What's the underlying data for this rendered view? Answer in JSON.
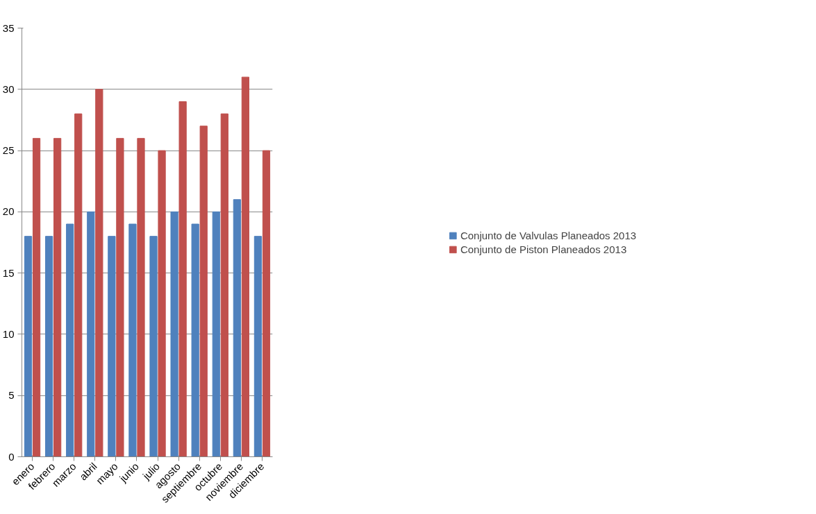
{
  "chart_data": {
    "type": "bar",
    "categories": [
      "enero",
      "febrero",
      "marzo",
      "abril",
      "mayo",
      "junio",
      "julio",
      "agosto",
      "septiembre",
      "octubre",
      "noviembre",
      "diciembre"
    ],
    "series": [
      {
        "name": "Conjunto de Valvulas Planeados 2013",
        "color": "#4f81bd",
        "values": [
          18,
          18,
          19,
          20,
          18,
          19,
          18,
          20,
          19,
          20,
          21,
          18
        ]
      },
      {
        "name": "Conjunto de Piston Planeados 2013",
        "color": "#c0504d",
        "values": [
          26,
          26,
          28,
          30,
          26,
          26,
          25,
          29,
          27,
          28,
          31,
          25
        ]
      }
    ],
    "ylim": [
      0,
      35
    ],
    "yticks": [
      0,
      5,
      10,
      15,
      20,
      25,
      30,
      35
    ],
    "grid": "y",
    "legend": "right"
  }
}
